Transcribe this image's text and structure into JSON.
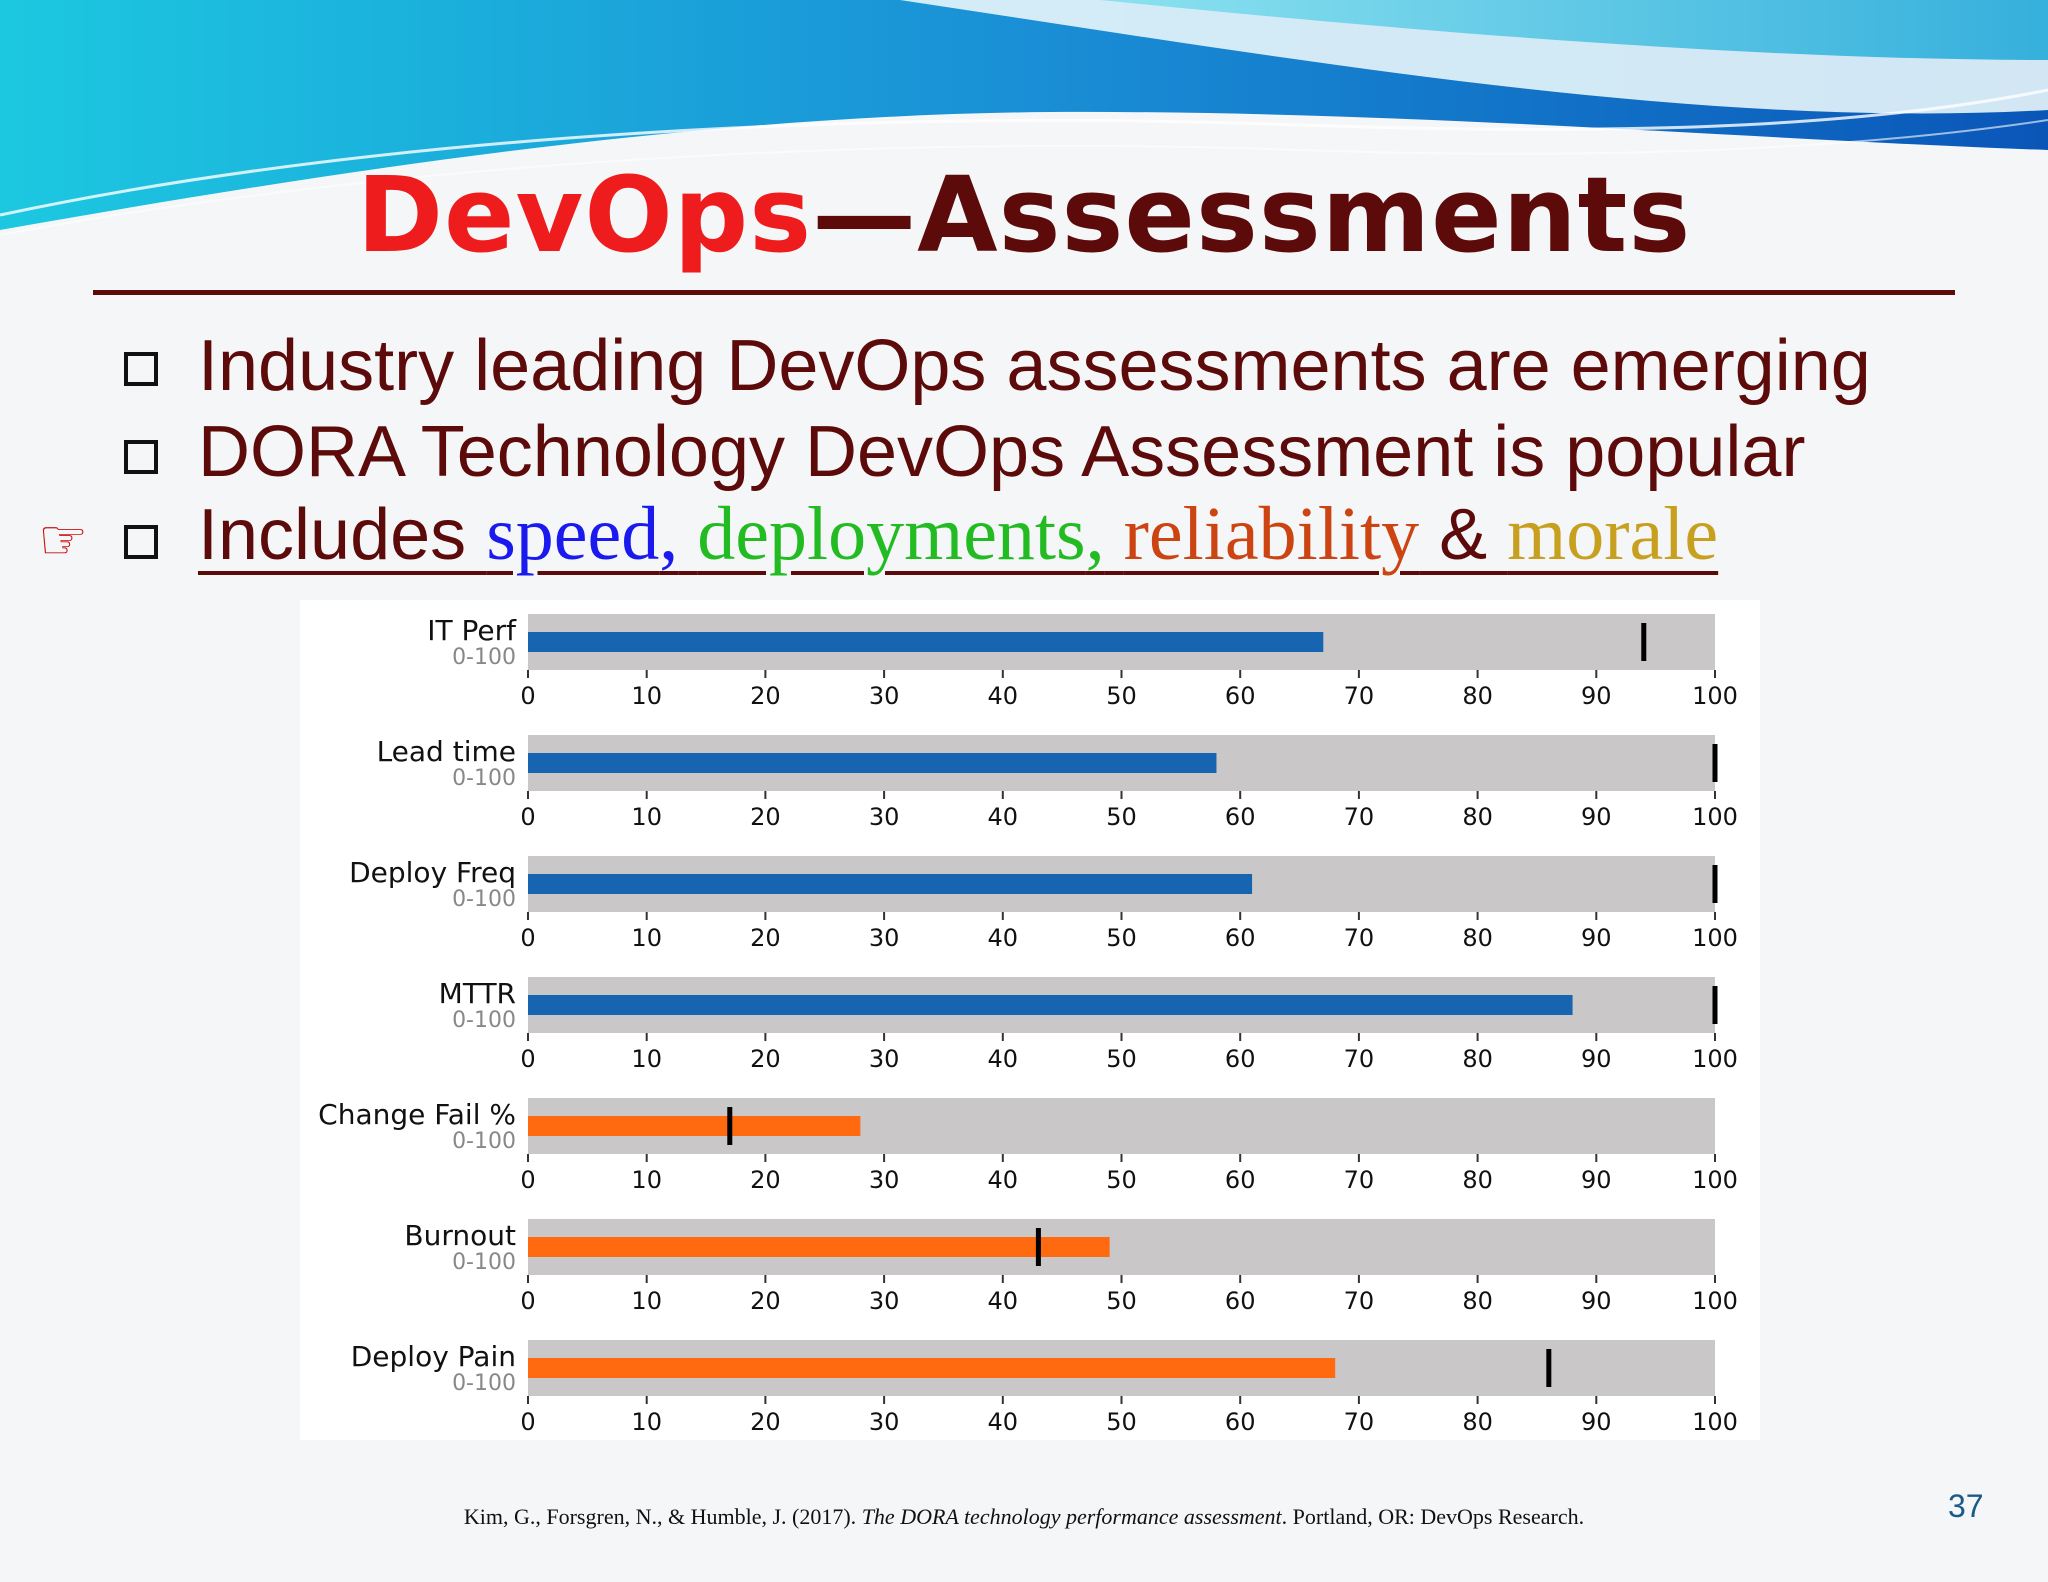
{
  "slide": {
    "title_part1": "DevOps",
    "title_part2": "—Assessments",
    "bullets": [
      "Industry leading DevOps assessments are emerging",
      "DORA Technology DevOps Assessment is popular"
    ],
    "bullet3": {
      "prefix": "Includes ",
      "speed": "speed",
      "comma1": ",",
      "deployments": "deployments",
      "comma2": ",",
      "reliability": "reliability",
      "amp": " & ",
      "morale": "morale"
    },
    "pointer_icon": "pointing-hand-icon",
    "citation": {
      "authors": "Kim, G., Forsgren, N., & Humble, J. (2017). ",
      "work": "The DORA technology performance assessment",
      "publisher": ". Portland, OR: DevOps Research."
    },
    "page_number": "37",
    "colors": {
      "title_red": "#ee1c1c",
      "title_maroon": "#5c0a0a",
      "speed": "#1a1aee",
      "deployments": "#22bb22",
      "reliability": "#cc4411",
      "morale": "#c8a020",
      "blue_bar": "#1764b0",
      "orange_bar": "#ff6a10",
      "track": "#c9c7c7"
    }
  },
  "chart_data": {
    "type": "bar",
    "orientation": "horizontal-bullet",
    "xlim": [
      0,
      100
    ],
    "ticks": [
      0,
      10,
      20,
      30,
      40,
      50,
      60,
      70,
      80,
      90,
      100
    ],
    "series": [
      {
        "name": "IT Perf",
        "range": "0-100",
        "value": 67,
        "target": 94,
        "color": "#1764b0"
      },
      {
        "name": "Lead time",
        "range": "0-100",
        "value": 58,
        "target": 100,
        "color": "#1764b0"
      },
      {
        "name": "Deploy Freq",
        "range": "0-100",
        "value": 61,
        "target": 100,
        "color": "#1764b0"
      },
      {
        "name": "MTTR",
        "range": "0-100",
        "value": 88,
        "target": 100,
        "color": "#1764b0"
      },
      {
        "name": "Change Fail %",
        "range": "0-100",
        "value": 28,
        "target": 17,
        "color": "#ff6a10"
      },
      {
        "name": "Burnout",
        "range": "0-100",
        "value": 49,
        "target": 43,
        "color": "#ff6a10"
      },
      {
        "name": "Deploy Pain",
        "range": "0-100",
        "value": 68,
        "target": 86,
        "color": "#ff6a10"
      }
    ]
  }
}
